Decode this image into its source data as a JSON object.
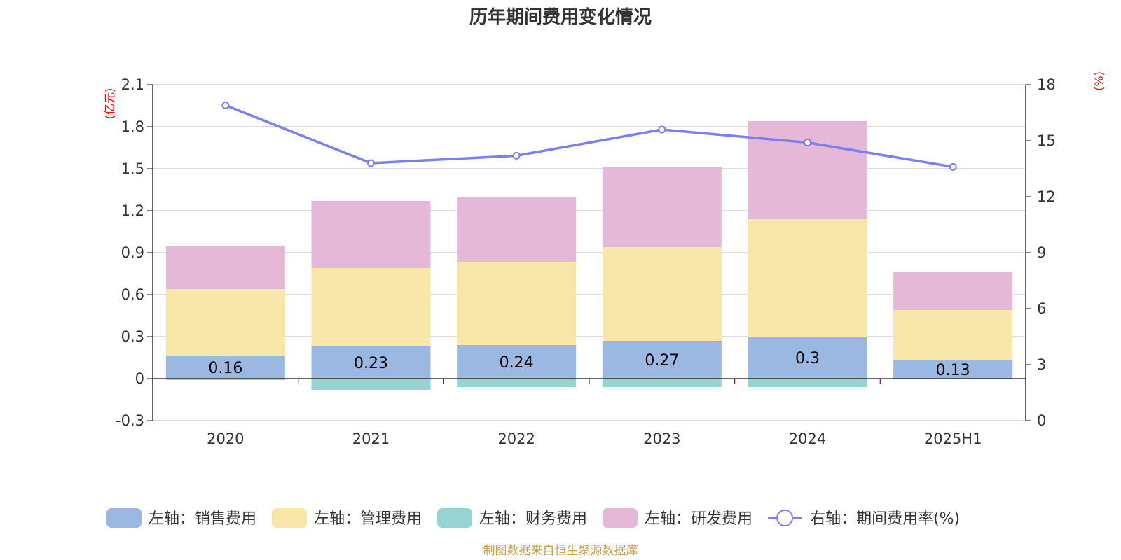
{
  "chart_data": {
    "type": "bar",
    "title": "历年期间费用变化情况",
    "categories": [
      "2020",
      "2021",
      "2022",
      "2023",
      "2024",
      "2025H1"
    ],
    "left_axis": {
      "unit": "(亿元)",
      "ylim": [
        -0.3,
        2.1
      ],
      "ticks": [
        "2.1",
        "1.8",
        "1.5",
        "1.2",
        "0.9",
        "0.6",
        "0.3",
        "0",
        "-0.3"
      ]
    },
    "right_axis": {
      "unit": "(%)",
      "ylim": [
        0,
        18
      ],
      "ticks": [
        "18",
        "15",
        "12",
        "9",
        "6",
        "3",
        "0"
      ]
    },
    "series": [
      {
        "name": "左轴：销售费用",
        "color": "#9bb8e2",
        "axis": "left",
        "stack": true,
        "values": [
          0.16,
          0.23,
          0.24,
          0.27,
          0.3,
          0.13
        ],
        "labels": [
          "0.16",
          "0.23",
          "0.24",
          "0.27",
          "0.3",
          "0.13"
        ]
      },
      {
        "name": "左轴：管理费用",
        "color": "#f8e7a8",
        "axis": "left",
        "stack": true,
        "values": [
          0.48,
          0.56,
          0.59,
          0.67,
          0.84,
          0.36
        ]
      },
      {
        "name": "左轴：财务费用",
        "color": "#96d3d3",
        "axis": "left",
        "stack": true,
        "values": [
          -0.01,
          -0.08,
          -0.06,
          -0.06,
          -0.06,
          -0.003
        ]
      },
      {
        "name": "左轴：研发费用",
        "color": "#e6b8d8",
        "axis": "left",
        "stack": true,
        "values": [
          0.31,
          0.48,
          0.47,
          0.57,
          0.7,
          0.27
        ]
      },
      {
        "name": "右轴：期间费用率(%)",
        "color": "#7b7ff0",
        "axis": "right",
        "type": "line",
        "values": [
          16.9,
          13.8,
          14.2,
          15.6,
          14.9,
          13.6
        ]
      }
    ],
    "grid": true,
    "legend_position": "bottom"
  },
  "footer": "制图数据来自恒生聚源数据库"
}
